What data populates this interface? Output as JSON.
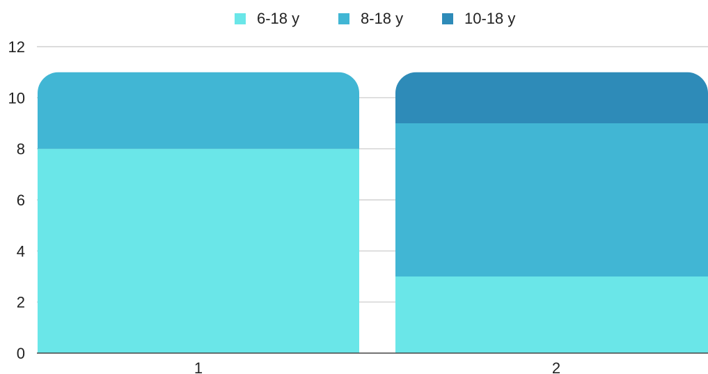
{
  "chart_data": {
    "type": "bar",
    "stacked": true,
    "categories": [
      "1",
      "2"
    ],
    "series": [
      {
        "name": "6-18 y",
        "values": [
          8,
          3
        ],
        "color": "#6ae6e8"
      },
      {
        "name": "8-18 y",
        "values": [
          3,
          6
        ],
        "color": "#41b6d4"
      },
      {
        "name": "10-18 y",
        "values": [
          0,
          2
        ],
        "color": "#2e8bb8"
      }
    ],
    "ylim": [
      0,
      12
    ],
    "yticks": [
      "0",
      "2",
      "4",
      "6",
      "8",
      "10",
      "12"
    ],
    "grid": true,
    "legend_position": "top",
    "title": "",
    "xlabel": "",
    "ylabel": ""
  }
}
